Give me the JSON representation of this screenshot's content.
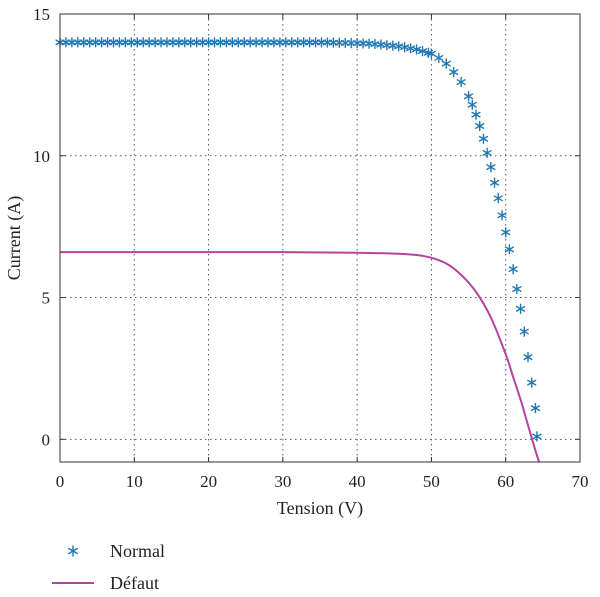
{
  "chart_data": {
    "type": "line",
    "title": "",
    "xlabel": "Tension (V)",
    "ylabel": "Current (A)",
    "xlim": [
      0,
      70
    ],
    "ylim": [
      -0.8,
      15
    ],
    "xticks": [
      0,
      10,
      20,
      30,
      40,
      50,
      60,
      70
    ],
    "yticks": [
      0,
      5,
      10,
      15
    ],
    "grid": true,
    "legend_position": "bottom-left, below plot",
    "series": [
      {
        "name": "Normal",
        "style": "markers",
        "marker": "asterisk",
        "color": "#1f77b4",
        "x": [
          0,
          5,
          10,
          15,
          20,
          25,
          30,
          35,
          40,
          42,
          44,
          46,
          48,
          50,
          51,
          52,
          53,
          54,
          55,
          55.5,
          56,
          56.5,
          57,
          57.5,
          58,
          58.5,
          59,
          59.5,
          60,
          60.5,
          61,
          61.5,
          62,
          62.5,
          63,
          63.5,
          64,
          64.2
        ],
        "y": [
          14.0,
          14.0,
          14.0,
          14.0,
          14.0,
          14.0,
          14.0,
          14.0,
          13.97,
          13.95,
          13.9,
          13.85,
          13.75,
          13.6,
          13.45,
          13.25,
          12.95,
          12.6,
          12.1,
          11.8,
          11.45,
          11.05,
          10.6,
          10.1,
          9.6,
          9.05,
          8.5,
          7.9,
          7.3,
          6.7,
          6.0,
          5.3,
          4.6,
          3.8,
          2.9,
          2.0,
          1.1,
          0.1
        ]
      },
      {
        "name": "Défaut",
        "style": "line",
        "color": "#b5449c",
        "x": [
          0,
          10,
          20,
          30,
          40,
          45,
          48,
          50,
          52,
          54,
          56,
          58,
          60,
          61,
          62,
          63,
          64,
          64.5
        ],
        "y": [
          6.6,
          6.6,
          6.6,
          6.6,
          6.58,
          6.55,
          6.5,
          6.4,
          6.2,
          5.8,
          5.2,
          4.3,
          3.0,
          2.2,
          1.4,
          0.5,
          -0.4,
          -0.8
        ]
      }
    ]
  }
}
